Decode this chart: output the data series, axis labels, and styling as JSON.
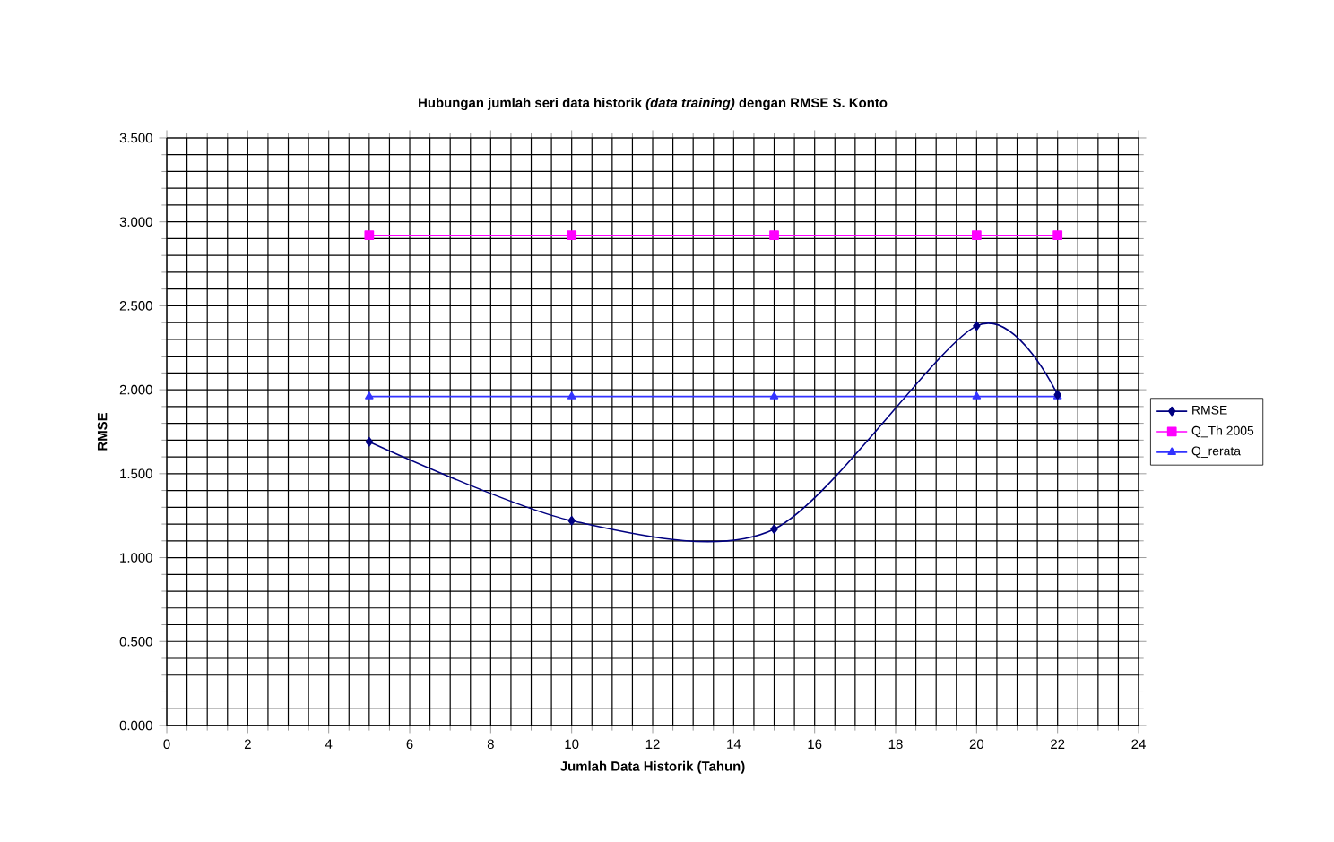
{
  "chart_data": {
    "type": "line",
    "title": "Hubungan jumlah seri data historik *(data training)* dengan RMSE S. Konto",
    "xlabel": "Jumlah Data Historik (Tahun)",
    "ylabel": "RMSE",
    "x": [
      5,
      10,
      15,
      20,
      22
    ],
    "series": [
      {
        "name": "RMSE",
        "color": "#000080",
        "marker": "diamond",
        "values": [
          1.69,
          1.22,
          1.17,
          2.38,
          1.97
        ]
      },
      {
        "name": "Q_Th 2005",
        "color": "#ff00ff",
        "marker": "square",
        "values": [
          2.92,
          2.92,
          2.92,
          2.92,
          2.92
        ]
      },
      {
        "name": "Q_rerata",
        "color": "#3333ff",
        "marker": "triangle",
        "values": [
          1.96,
          1.96,
          1.96,
          1.96,
          1.96
        ]
      }
    ],
    "xlim": [
      0,
      24
    ],
    "xticks": [
      0,
      2,
      4,
      6,
      8,
      10,
      12,
      14,
      16,
      18,
      20,
      22,
      24
    ],
    "ylim": [
      0,
      3.5
    ],
    "yticks": [
      {
        "value": 0,
        "label": "0.000"
      },
      {
        "value": 0.5,
        "label": "0.500"
      },
      {
        "value": 1,
        "label": "1.000"
      },
      {
        "value": 1.5,
        "label": "1.500"
      },
      {
        "value": 2,
        "label": "2.000"
      },
      {
        "value": 2.5,
        "label": "2.500"
      },
      {
        "value": 3,
        "label": "3.000"
      },
      {
        "value": 3.5,
        "label": "3.500"
      }
    ],
    "grid": true,
    "legend": "right",
    "line_style": "solid"
  }
}
